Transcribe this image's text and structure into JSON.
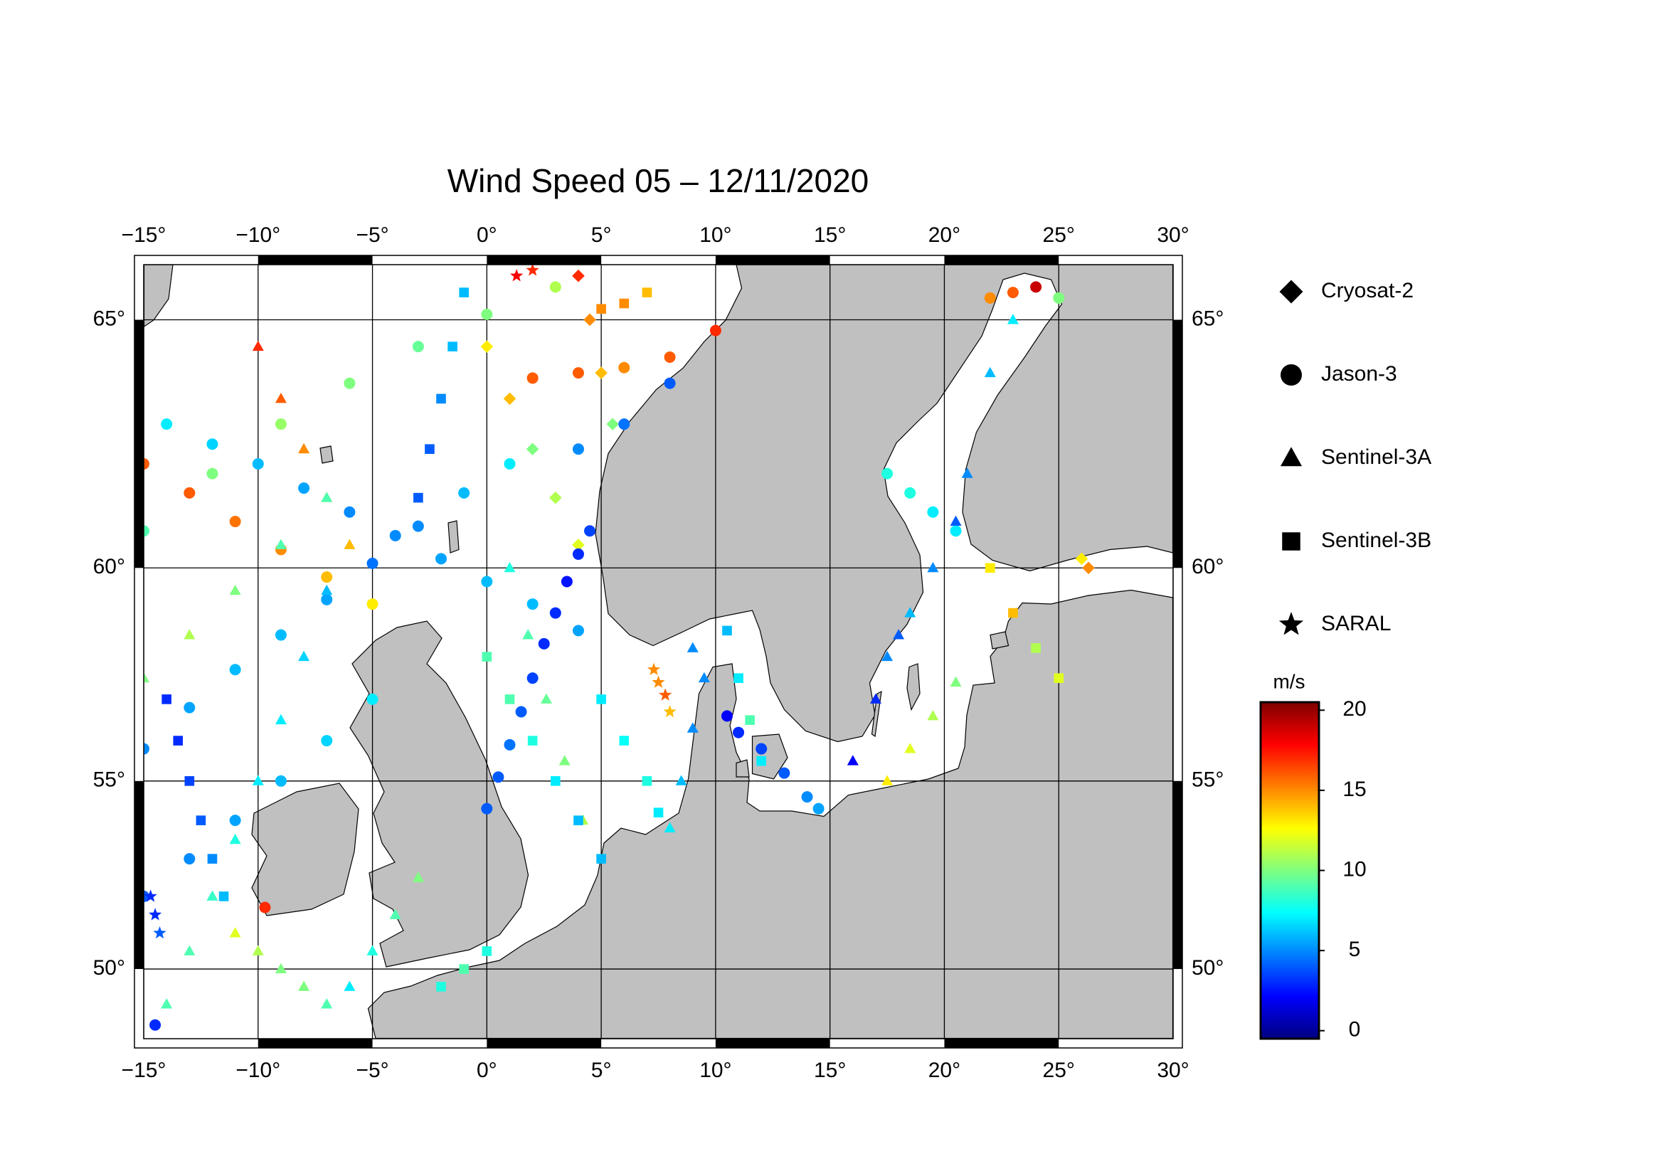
{
  "chart_data": {
    "type": "scatter",
    "title": "Wind Speed 05 – 12/11/2020",
    "projection": "mercator",
    "xlim": [
      -15,
      30
    ],
    "ylim": [
      48,
      66
    ],
    "xticks": [
      {
        "value": -15,
        "label": "−15°"
      },
      {
        "value": -10,
        "label": "−10°"
      },
      {
        "value": -5,
        "label": "−5°"
      },
      {
        "value": 0,
        "label": "0°"
      },
      {
        "value": 5,
        "label": "5°"
      },
      {
        "value": 10,
        "label": "10°"
      },
      {
        "value": 15,
        "label": "15°"
      },
      {
        "value": 20,
        "label": "20°"
      },
      {
        "value": 25,
        "label": "25°"
      },
      {
        "value": 30,
        "label": "30°"
      }
    ],
    "yticks": [
      {
        "value": 50,
        "label": "50°"
      },
      {
        "value": 55,
        "label": "55°"
      },
      {
        "value": 60,
        "label": "60°"
      },
      {
        "value": 65,
        "label": "65°"
      }
    ],
    "grid": true,
    "legend": "right",
    "colorbar": {
      "label": "m/s",
      "lim": [
        -0.5,
        20.5
      ],
      "ticks": [
        0,
        5,
        10,
        15,
        20
      ],
      "colormap": [
        "#00007f",
        "#0000ff",
        "#007fff",
        "#00ffff",
        "#7fff7f",
        "#ffff00",
        "#ff7f00",
        "#ff0000",
        "#7f0000"
      ]
    },
    "series": [
      {
        "name": "Cryosat-2",
        "marker": "diamond",
        "x": [
          0,
          1,
          2,
          3,
          4,
          4,
          4.5,
          5,
          5.5,
          26,
          26.3
        ],
        "y": [
          64.5,
          63.5,
          62.5,
          61.5,
          60.5,
          65.8,
          65,
          64,
          63,
          60.2,
          60
        ],
        "values": [
          13,
          14,
          10,
          11,
          12,
          17,
          15,
          14,
          10,
          13,
          15
        ]
      },
      {
        "name": "Jason-3",
        "marker": "circle",
        "x": [
          0,
          0.5,
          1,
          1.5,
          2,
          2.5,
          3,
          3.5,
          4,
          4.5,
          -14,
          -12,
          -10,
          -8,
          -6,
          -4,
          -2,
          0,
          2,
          4,
          -15,
          -13,
          -11,
          -9,
          -7,
          -5,
          -15,
          -13,
          -11,
          -9,
          -7,
          -5,
          -3,
          -1,
          1,
          -15,
          -12,
          -9,
          -6,
          -3,
          0,
          3,
          2,
          4,
          6,
          8,
          10,
          4,
          6,
          8,
          17.5,
          18.5,
          19.5,
          20.5,
          22,
          23,
          24,
          25,
          -15,
          -13,
          -11,
          -9,
          -7,
          -5,
          -14.5,
          10.5,
          11,
          12,
          13,
          14,
          14.5,
          -9.7
        ],
        "y": [
          54.3,
          55.1,
          55.9,
          56.7,
          57.5,
          58.3,
          59,
          59.7,
          60.3,
          60.8,
          63,
          62.6,
          62.2,
          61.7,
          61.2,
          60.7,
          60.2,
          59.7,
          59.2,
          58.6,
          62.2,
          61.6,
          61,
          60.4,
          59.8,
          59.2,
          55.8,
          56.8,
          57.7,
          58.5,
          59.3,
          60.1,
          60.9,
          61.6,
          62.2,
          60.8,
          62,
          63,
          63.8,
          64.5,
          65.1,
          65.6,
          63.9,
          64,
          64.1,
          64.3,
          64.8,
          62.5,
          63,
          63.8,
          62,
          61.6,
          61.2,
          60.8,
          65.4,
          65.5,
          65.6,
          65.4,
          52,
          53,
          54,
          55,
          56,
          57,
          48.4,
          56.6,
          56.2,
          55.8,
          55.2,
          54.6,
          54.3,
          51.7
        ],
        "values": [
          4,
          4,
          4.5,
          4,
          3.5,
          3,
          3,
          2.5,
          3,
          3.5,
          7,
          6.5,
          6,
          5.5,
          5,
          5,
          5.5,
          6,
          6,
          5.5,
          16,
          16,
          15.5,
          15,
          14,
          13,
          5,
          5.5,
          6,
          6,
          5.5,
          4.5,
          5,
          6,
          7,
          9,
          10,
          10.5,
          10,
          9.5,
          10,
          11,
          16,
          16,
          15,
          16,
          17,
          5,
          4.5,
          4,
          8,
          8,
          7,
          7,
          15,
          16,
          19,
          10,
          4,
          5,
          5.5,
          6,
          6.5,
          7,
          3,
          2,
          3,
          3.5,
          4,
          5,
          5.5,
          17
        ]
      },
      {
        "name": "Sentinel-3A",
        "marker": "triangle",
        "x": [
          -14,
          -13,
          -12,
          -11,
          -10,
          -9,
          -8,
          -7,
          -10,
          -9,
          -8,
          -7,
          -6,
          1,
          1.8,
          2.6,
          3.4,
          4.2,
          8,
          8.5,
          9,
          9.5,
          9,
          17.5,
          18.5,
          19.5,
          20.5,
          21,
          22,
          23,
          16,
          17,
          18,
          17.5,
          18.5,
          19.5,
          20.5,
          -6,
          -5,
          -4,
          -3,
          -11,
          -10,
          -9,
          -8,
          -7,
          -15,
          -13,
          -11,
          -9,
          -7
        ],
        "y": [
          49,
          50.5,
          52,
          53.5,
          55,
          56.5,
          58,
          59.5,
          64.5,
          63.5,
          62.5,
          61.5,
          60.5,
          60,
          58.5,
          57,
          55.5,
          54,
          53.8,
          55,
          56.3,
          57.5,
          58.2,
          58,
          59,
          60,
          61,
          62,
          64,
          65,
          55.5,
          57,
          58.5,
          55,
          55.8,
          56.6,
          57.4,
          49.5,
          50.5,
          51.5,
          52.5,
          51,
          50.5,
          50,
          49.5,
          49,
          57.5,
          58.5,
          59.5,
          60.5,
          61.5
        ],
        "values": [
          9,
          9,
          8.5,
          8,
          7,
          7,
          6.5,
          6,
          17,
          16,
          15,
          14,
          14,
          8,
          9,
          9.5,
          10,
          11,
          7,
          6,
          5,
          5,
          5,
          5,
          6,
          5,
          4,
          5,
          6,
          7,
          2,
          3,
          4,
          13,
          12,
          11,
          10,
          7,
          8,
          9,
          10,
          12,
          11,
          10,
          10,
          9,
          10,
          11,
          10,
          9,
          9
        ]
      },
      {
        "name": "Sentinel-3B",
        "marker": "square",
        "x": [
          -14,
          -13.5,
          -13,
          -12.5,
          -12,
          -11.5,
          -3,
          -2.5,
          -2,
          -1.5,
          -1,
          0,
          1,
          2,
          3,
          4,
          5,
          5,
          6,
          7,
          7.5,
          10.5,
          11,
          11.5,
          12,
          22,
          23,
          24,
          25,
          -2,
          -1,
          0,
          5,
          6,
          7
        ],
        "y": [
          57,
          56,
          55,
          54,
          53,
          52,
          61.5,
          62.5,
          63.5,
          64.5,
          65.5,
          58,
          57,
          56,
          55,
          54,
          53,
          57,
          56,
          55,
          54.2,
          58.6,
          57.5,
          56.5,
          55.5,
          60,
          59,
          58.2,
          57.5,
          49.5,
          50,
          50.5,
          65.2,
          65.3,
          65.5
        ],
        "values": [
          3,
          3,
          3.5,
          4,
          5,
          6,
          4,
          4,
          5,
          6,
          6,
          9,
          9,
          8,
          7,
          6,
          6,
          7,
          7.5,
          8,
          7,
          6,
          7,
          9,
          7,
          13,
          14,
          11,
          12,
          8,
          9,
          8,
          15,
          15,
          14
        ]
      },
      {
        "name": "SARAL",
        "marker": "star",
        "x": [
          7.3,
          7.5,
          7.8,
          8,
          -14.7,
          -14.5,
          -14.3,
          1.3,
          2
        ],
        "y": [
          57.7,
          57.4,
          57.1,
          56.7,
          52,
          51.5,
          51,
          65.8,
          65.9
        ],
        "values": [
          15,
          15,
          16,
          14,
          3,
          3,
          4,
          18,
          17
        ]
      }
    ]
  }
}
